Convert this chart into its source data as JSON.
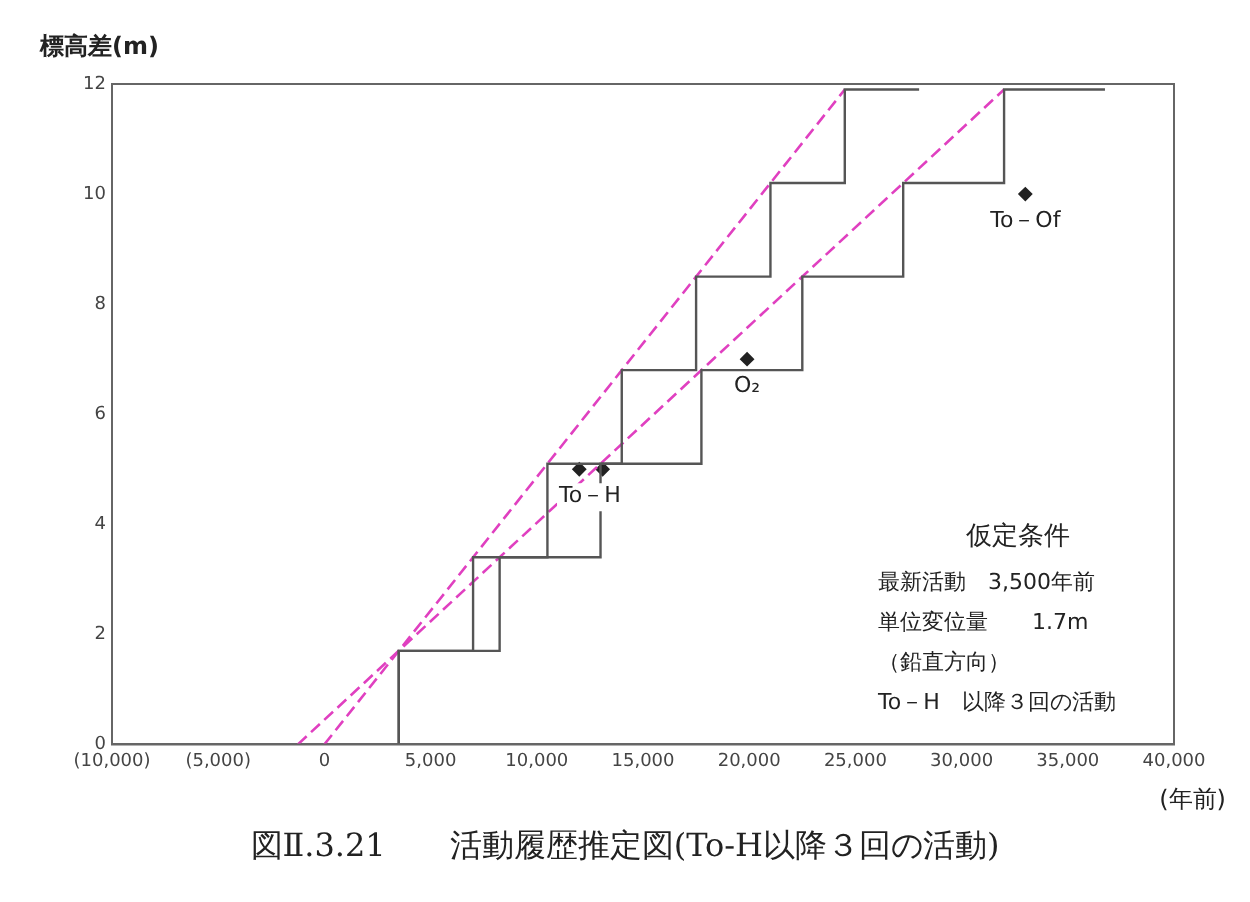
{
  "chart_data": {
    "type": "line",
    "title": "図Ⅱ.3.21　　活動履歴推定図(To-H以降３回の活動)",
    "xlabel": "(年前)",
    "ylabel": "標高差(m)",
    "xlim": [
      -10000,
      40000
    ],
    "xticks": [
      {
        "value": -10000,
        "label": "(10,000)"
      },
      {
        "value": -5000,
        "label": "(5,000)"
      },
      0,
      {
        "value": 5000,
        "label": "5,000"
      },
      {
        "value": 10000,
        "label": "10,000"
      },
      {
        "value": 15000,
        "label": "15,000"
      },
      {
        "value": 20000,
        "label": "20,000"
      },
      {
        "value": 25000,
        "label": "25,000"
      },
      {
        "value": 30000,
        "label": "30,000"
      },
      {
        "value": 35000,
        "label": "35,000"
      },
      {
        "value": 40000,
        "label": "40,000"
      }
    ],
    "ylim": [
      0,
      12
    ],
    "yticks": [
      0,
      2,
      4,
      6,
      8,
      10,
      12
    ],
    "series": [
      {
        "type": "step",
        "color": "#555555",
        "x": [
          3500,
          7000,
          10500,
          14000,
          17500,
          21000,
          24500,
          28000
        ],
        "values": [
          0,
          1.7,
          3.4,
          5.1,
          6.8,
          8.5,
          10.2,
          11.9
        ]
      },
      {
        "type": "step",
        "color": "#555555",
        "x": [
          3500,
          8250,
          13000,
          17750,
          22500,
          27250,
          32000,
          36750
        ],
        "values": [
          0,
          1.7,
          3.4,
          5.1,
          6.8,
          8.5,
          10.2,
          11.9
        ]
      },
      {
        "type": "line",
        "color": "#e040c0",
        "line_style": "dashed",
        "x": [
          0,
          24500
        ],
        "values": [
          0,
          11.9
        ]
      },
      {
        "type": "line",
        "color": "#e040c0",
        "line_style": "dashed",
        "x": [
          -1250,
          32000
        ],
        "values": [
          0,
          11.9
        ]
      },
      {
        "type": "scatter",
        "color": "#222222",
        "marker": "diamond",
        "x": [
          12000,
          13100,
          19900,
          33000
        ],
        "values": [
          5.0,
          5.0,
          7.0,
          10.0
        ]
      }
    ],
    "annotations": [
      {
        "text": "To－H",
        "x": 12500,
        "y": 5.0
      },
      {
        "text": "O₂",
        "x": 19900,
        "y": 7.0
      },
      {
        "text": "To－Of",
        "x": 33000,
        "y": 10.0
      },
      "仮定条件",
      "最新活動　3,500年前",
      "単位変位量　　1.7m",
      "（鉛直方向）",
      "To－H　以降３回の活動"
    ]
  }
}
